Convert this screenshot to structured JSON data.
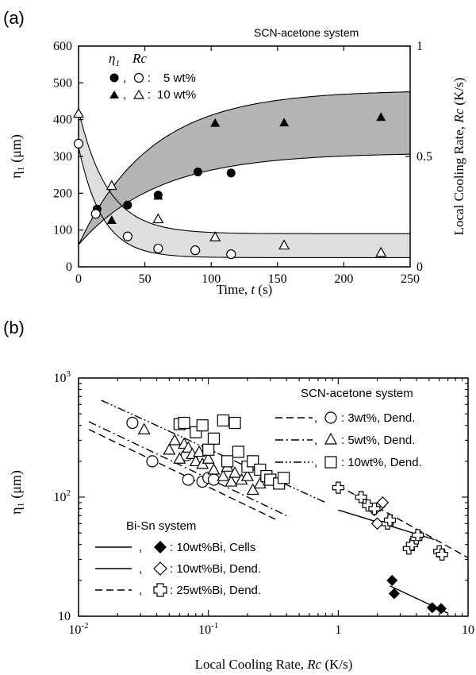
{
  "chart_data": [
    {
      "panel_label": "(a)",
      "type": "scatter",
      "title": "SCN-acetone system",
      "xlabel_text": "Time, ",
      "xlabel_var": "t",
      "xlabel_unit": " (s)",
      "ylabel": "η₁ (μm)",
      "y2label_text": "Local Cooling Rate, ",
      "y2label_var": "Rc",
      "y2label_unit": " (K/s)",
      "xlim": [
        0,
        250
      ],
      "ylim": [
        0,
        600
      ],
      "y2lim": [
        0,
        1
      ],
      "x_ticks": [
        "0",
        "50",
        "100",
        "150",
        "200",
        "250"
      ],
      "y_ticks": [
        "0",
        "100",
        "200",
        "300",
        "400",
        "500",
        "600"
      ],
      "y2_ticks": [
        "0",
        "0.5",
        "1"
      ],
      "legend": {
        "header_eta": "η",
        "header_eta_sub": "1",
        "header_rc": "Rc",
        "rows": [
          {
            "label": "5 wt%",
            "eta_marker": "filled-circle",
            "rc_marker": "open-circle"
          },
          {
            "label": "10 wt%",
            "eta_marker": "filled-triangle",
            "rc_marker": "open-triangle"
          }
        ]
      },
      "series": [
        {
          "quantity": "eta1",
          "concentration": "5 wt%",
          "marker": "filled-circle",
          "axis": "left",
          "x": [
            14,
            37,
            60,
            90,
            115
          ],
          "y": [
            157,
            168,
            195,
            258,
            255
          ]
        },
        {
          "quantity": "eta1",
          "concentration": "10 wt%",
          "marker": "filled-triangle",
          "axis": "left",
          "x": [
            25,
            60,
            103,
            155,
            228
          ],
          "y": [
            127,
            193,
            391,
            392,
            407
          ]
        },
        {
          "quantity": "Rc",
          "concentration": "5 wt%",
          "marker": "open-circle",
          "axis": "right",
          "x": [
            0,
            13,
            37,
            60,
            88,
            115
          ],
          "y": [
            0.558,
            0.24,
            0.138,
            0.083,
            0.075,
            0.057
          ]
        },
        {
          "quantity": "Rc",
          "concentration": "10 wt%",
          "marker": "open-triangle",
          "axis": "right",
          "x": [
            0,
            25,
            60,
            103,
            155,
            228
          ],
          "y": [
            0.695,
            0.368,
            0.217,
            0.135,
            0.098,
            0.065
          ]
        }
      ]
    },
    {
      "panel_label": "(b)",
      "type": "scatter",
      "scale": "log-log",
      "xlabel_text": "Local Cooling Rate, ",
      "xlabel_var": "Rc",
      "xlabel_unit": " (K/s)",
      "ylabel": "η₁ (μm)",
      "xlim": [
        0.01,
        10
      ],
      "ylim": [
        10,
        1000
      ],
      "x_ticks": [
        {
          "base": "10",
          "exp": "-2"
        },
        {
          "base": "10",
          "exp": "-1"
        },
        {
          "base": "1",
          "exp": ""
        },
        {
          "base": "10",
          "exp": ""
        }
      ],
      "y_ticks": [
        {
          "base": "10",
          "exp": ""
        },
        {
          "base": "10",
          "exp": "2"
        },
        {
          "base": "10",
          "exp": "3"
        }
      ],
      "legend_scn": {
        "title": "SCN-acetone system",
        "rows": [
          {
            "line": "dashed",
            "marker": "open-circle",
            "label": ":  3wt%, Dend."
          },
          {
            "line": "dash-dot",
            "marker": "open-triangle",
            "label": ":  5wt%, Dend."
          },
          {
            "line": "dash-dot-dot",
            "marker": "open-square",
            "label": ": 10wt%, Dend."
          }
        ]
      },
      "legend_bisn": {
        "title": "Bi-Sn system",
        "rows": [
          {
            "line": "solid",
            "marker": "filled-diamond",
            "label": ": 10wt%Bi, Cells"
          },
          {
            "line": "solid",
            "marker": "open-diamond",
            "label": ": 10wt%Bi, Dend."
          },
          {
            "line": "dashed",
            "marker": "open-cross",
            "label": ": 25wt%Bi, Dend."
          }
        ]
      },
      "series": [
        {
          "system": "SCN-acetone",
          "label": "3wt%, Dend.",
          "marker": "open-circle",
          "x": [
            0.026,
            0.037,
            0.068,
            0.07,
            0.09,
            0.1,
            0.11
          ],
          "y": [
            420,
            200,
            225,
            140,
            135,
            145,
            140
          ],
          "fit": {
            "x": [
              0.012,
              0.35
            ],
            "y": [
              370,
              63
            ]
          }
        },
        {
          "system": "SCN-acetone",
          "label": "5wt%, Dend.",
          "marker": "open-triangle",
          "x": [
            0.032,
            0.05,
            0.055,
            0.06,
            0.065,
            0.07,
            0.075,
            0.08,
            0.085,
            0.09,
            0.1,
            0.11,
            0.13,
            0.14,
            0.15,
            0.16,
            0.18,
            0.2,
            0.22,
            0.25
          ],
          "y": [
            370,
            250,
            300,
            210,
            280,
            260,
            230,
            200,
            240,
            190,
            210,
            170,
            150,
            180,
            135,
            160,
            140,
            150,
            115,
            130
          ],
          "fit": {
            "x": [
              0.012,
              0.4
            ],
            "y": [
              430,
              70
            ]
          }
        },
        {
          "system": "SCN-acetone",
          "label": "10wt%, Dend.",
          "marker": "open-square",
          "x": [
            0.06,
            0.065,
            0.08,
            0.09,
            0.1,
            0.11,
            0.13,
            0.14,
            0.16,
            0.17,
            0.2,
            0.22,
            0.25,
            0.28,
            0.3,
            0.35,
            0.38
          ],
          "y": [
            410,
            420,
            350,
            400,
            250,
            310,
            440,
            200,
            420,
            240,
            180,
            200,
            170,
            150,
            140,
            130,
            145
          ],
          "fit": {
            "x": [
              0.015,
              0.8
            ],
            "y": [
              650,
              90
            ]
          }
        },
        {
          "system": "Bi-Sn",
          "label": "10wt%Bi, Cells",
          "marker": "filled-diamond",
          "x": [
            2.6,
            2.7,
            5.3,
            6.2
          ],
          "y": [
            20,
            15.5,
            11.8,
            11.6
          ],
          "fit": {
            "x": [
              2.5,
              7
            ],
            "y": [
              18,
              10.6
            ]
          }
        },
        {
          "system": "Bi-Sn",
          "label": "10wt%Bi, Dend.",
          "marker": "open-diamond",
          "x": [
            1.9,
            2.0,
            2.1,
            2.2
          ],
          "y": [
            78,
            60,
            85,
            90
          ],
          "fit": {
            "x": [
              1.0,
              5.5
            ],
            "y": [
              78,
              44
            ]
          }
        },
        {
          "system": "Bi-Sn",
          "label": "25wt%Bi, Dend.",
          "marker": "open-cross",
          "x": [
            1.0,
            1.5,
            1.7,
            1.9,
            2.4,
            2.5,
            3.5,
            3.7,
            4.0,
            4.1,
            6.0,
            6.3
          ],
          "y": [
            120,
            100,
            85,
            80,
            60,
            64,
            37,
            40,
            45,
            48,
            35,
            33
          ],
          "fit": {
            "x": [
              1.0,
              10
            ],
            "y": [
              125,
              31
            ]
          }
        }
      ]
    }
  ]
}
